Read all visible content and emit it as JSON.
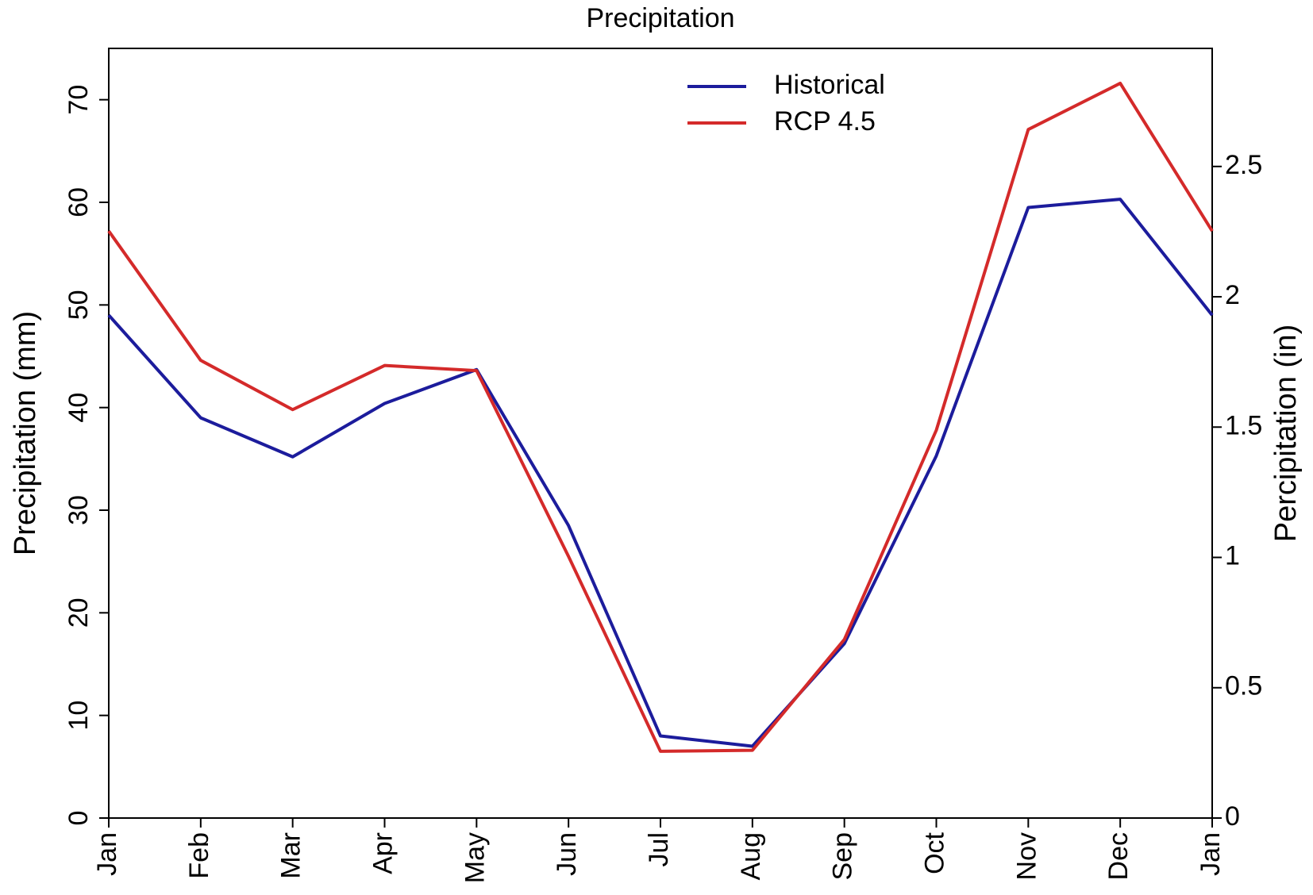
{
  "chart_data": {
    "type": "line",
    "title": "Precipitation",
    "categories": [
      "Jan",
      "Feb",
      "Mar",
      "Apr",
      "May",
      "Jun",
      "Jul",
      "Aug",
      "Sep",
      "Oct",
      "Nov",
      "Dec",
      "Jan"
    ],
    "series": [
      {
        "name": "Historical",
        "color": "#1c1c9c",
        "values": [
          49,
          39,
          35.2,
          40.4,
          43.7,
          28.5,
          8,
          7,
          17,
          35.3,
          59.5,
          60.3,
          49
        ]
      },
      {
        "name": "RCP 4.5",
        "color": "#d42a2a",
        "values": [
          57.2,
          44.6,
          39.8,
          44.1,
          43.6,
          25.5,
          6.5,
          6.6,
          17.4,
          37.8,
          67.1,
          71.6,
          57.2
        ]
      }
    ],
    "ylabel": "Precipitation (mm)",
    "y2label": "Percipitation (in)",
    "ylim": [
      0,
      75
    ],
    "yticks": [
      0,
      10,
      20,
      30,
      40,
      50,
      60,
      70
    ],
    "y2lim": [
      0,
      2.953
    ],
    "y2ticks": [
      0,
      0.5,
      1,
      1.5,
      2,
      2.5
    ],
    "legend": "top"
  }
}
